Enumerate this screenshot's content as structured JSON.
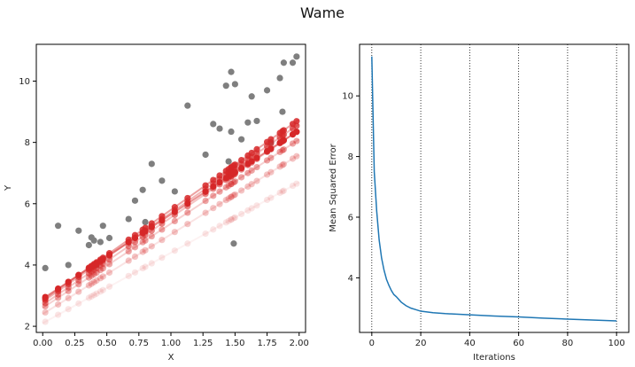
{
  "figure": {
    "suptitle": "Wame"
  },
  "colors": {
    "raw_points": "#7f7f7f",
    "fit_points": "#d62728",
    "loss_line": "#1f77b4",
    "grid": "#000000"
  },
  "chart_data": [
    {
      "type": "scatter",
      "xlabel": "X",
      "ylabel": "Y",
      "xlim": [
        -0.05,
        2.05
      ],
      "ylim": [
        1.8,
        11.2
      ],
      "xticks": [
        0.0,
        0.25,
        0.5,
        0.75,
        1.0,
        1.25,
        1.5,
        1.75,
        2.0
      ],
      "xtick_labels": [
        "0.00",
        "0.25",
        "0.50",
        "0.75",
        "1.00",
        "1.25",
        "1.50",
        "1.75",
        "2.00"
      ],
      "yticks": [
        2,
        4,
        6,
        8,
        10
      ],
      "ytick_labels": [
        "2",
        "4",
        "6",
        "8",
        "10"
      ],
      "grid": false,
      "data_points": {
        "x": [
          0.02,
          0.12,
          0.2,
          0.28,
          0.36,
          0.38,
          0.4,
          0.42,
          0.45,
          0.47,
          0.52,
          0.67,
          0.72,
          0.78,
          0.8,
          0.85,
          0.93,
          1.03,
          1.13,
          1.27,
          1.33,
          1.38,
          1.43,
          1.45,
          1.47,
          1.47,
          1.49,
          1.5,
          1.55,
          1.6,
          1.63,
          1.67,
          1.75,
          1.78,
          1.85,
          1.87,
          1.88,
          1.95,
          1.98
        ],
        "y": [
          3.9,
          5.28,
          4.0,
          5.12,
          4.65,
          4.9,
          4.8,
          4.0,
          4.75,
          5.28,
          4.88,
          5.5,
          6.1,
          6.45,
          5.4,
          7.3,
          6.75,
          6.4,
          9.2,
          7.6,
          8.6,
          8.45,
          9.85,
          7.38,
          8.35,
          10.3,
          4.7,
          9.9,
          8.1,
          8.65,
          9.5,
          8.7,
          9.7,
          8.0,
          10.1,
          9.0,
          10.6,
          10.6,
          10.8
        ]
      },
      "fitted_lines": [
        {
          "intercept": 2.1,
          "slope": 2.3
        },
        {
          "intercept": 2.4,
          "slope": 2.6
        },
        {
          "intercept": 2.6,
          "slope": 2.75
        },
        {
          "intercept": 2.7,
          "slope": 2.85
        },
        {
          "intercept": 2.8,
          "slope": 2.9
        },
        {
          "intercept": 2.85,
          "slope": 2.95
        },
        {
          "intercept": 2.9,
          "slope": 2.75
        }
      ]
    },
    {
      "type": "line",
      "xlabel": "Iterations",
      "ylabel": "Mean Squared Error",
      "xlim": [
        -5,
        105
      ],
      "ylim": [
        2.2,
        11.7
      ],
      "xticks": [
        0,
        20,
        40,
        60,
        80,
        100
      ],
      "xtick_labels": [
        "0",
        "20",
        "40",
        "60",
        "80",
        "100"
      ],
      "yticks": [
        4,
        6,
        8,
        10
      ],
      "ytick_labels": [
        "4",
        "6",
        "8",
        "10"
      ],
      "grid": "vertical dotted",
      "series": [
        {
          "x": [
            0,
            1,
            2,
            3,
            4,
            5,
            6,
            7,
            8,
            9,
            10,
            12,
            14,
            16,
            18,
            20,
            25,
            30,
            40,
            50,
            60,
            70,
            80,
            90,
            100
          ],
          "y": [
            11.3,
            7.5,
            6.2,
            5.25,
            4.65,
            4.25,
            3.95,
            3.75,
            3.58,
            3.45,
            3.38,
            3.2,
            3.08,
            3.0,
            2.95,
            2.9,
            2.85,
            2.82,
            2.78,
            2.74,
            2.71,
            2.67,
            2.64,
            2.61,
            2.58
          ]
        }
      ]
    }
  ]
}
